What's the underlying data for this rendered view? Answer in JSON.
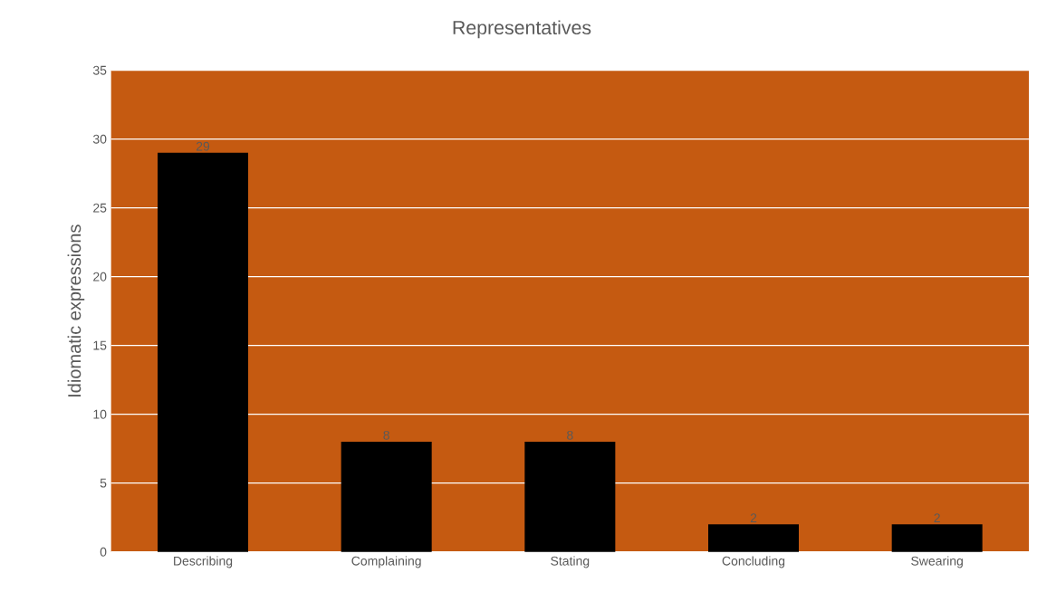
{
  "chart_data": {
    "type": "bar",
    "title": "Representatives",
    "ylabel": "Idiomatic expressions",
    "categories": [
      "Describing",
      "Complaining",
      "Stating",
      "Concluding",
      "Swearing"
    ],
    "values": [
      29,
      8,
      8,
      2,
      2
    ],
    "color": "#000000",
    "ylim": [
      0,
      35
    ],
    "yticks": [
      0,
      5,
      10,
      15,
      20,
      25,
      30,
      35
    ],
    "grid": "y",
    "data_labels": true
  }
}
